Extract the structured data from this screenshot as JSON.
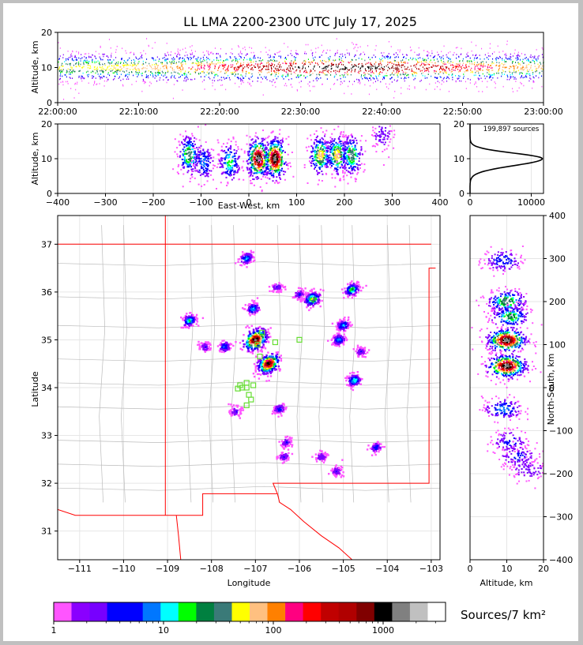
{
  "chart_data": [
    {
      "type": "scatter",
      "panel": "altitude-time",
      "title": "LL LMA 2200-2300 UTC July 17, 2025",
      "ylabel": "Altitude, km",
      "ylim": [
        0,
        20
      ],
      "yticks": [
        0,
        10,
        20
      ],
      "xticks": [
        "22:00:00",
        "22:10:00",
        "22:20:00",
        "22:30:00",
        "22:40:00",
        "22:50:00",
        "23:00:00"
      ],
      "xlim_minutes": [
        0,
        60
      ],
      "density_center_km": 10
    },
    {
      "type": "scatter",
      "panel": "east-west-altitude",
      "xlabel": "East-West, km",
      "ylabel": "Altitude, km",
      "xlim": [
        -400,
        400
      ],
      "ylim": [
        0,
        20
      ],
      "xticks": [
        -400,
        -300,
        -200,
        -100,
        0,
        100,
        200,
        300,
        400
      ],
      "yticks": [
        0,
        10,
        20
      ],
      "clusters": [
        {
          "x": -125,
          "z": 11,
          "weight": 0.5
        },
        {
          "x": -95,
          "z": 9,
          "weight": 0.3
        },
        {
          "x": -40,
          "z": 9,
          "weight": 0.4
        },
        {
          "x": 20,
          "z": 10,
          "weight": 1.0
        },
        {
          "x": 55,
          "z": 10,
          "weight": 1.0
        },
        {
          "x": 150,
          "z": 11,
          "weight": 0.6
        },
        {
          "x": 185,
          "z": 11,
          "weight": 0.6
        },
        {
          "x": 215,
          "z": 11,
          "weight": 0.5
        },
        {
          "x": 280,
          "z": 17,
          "weight": 0.15
        }
      ]
    },
    {
      "type": "line",
      "panel": "altitude-histogram",
      "annotation": "199,897 sources",
      "xlim": [
        0,
        12000
      ],
      "ylim": [
        0,
        20
      ],
      "xticks": [
        0,
        10000
      ],
      "yticks": [
        0,
        10,
        20
      ],
      "peak_altitude_km": 10,
      "peak_count": 11800
    },
    {
      "type": "scatter",
      "panel": "plan-view-map",
      "xlabel": "Longitude",
      "ylabel": "Latitude",
      "xlim": [
        -111.5,
        -102.8
      ],
      "ylim": [
        30.4,
        37.6
      ],
      "xticks": [
        -111,
        -110,
        -109,
        -108,
        -107,
        -106,
        -105,
        -104,
        -103
      ],
      "yticks": [
        31,
        32,
        33,
        34,
        35,
        36,
        37
      ],
      "source_clusters": [
        {
          "lon": -107.0,
          "lat": 35.0,
          "weight": 1.0
        },
        {
          "lon": -106.7,
          "lat": 34.5,
          "weight": 0.9
        },
        {
          "lon": -105.7,
          "lat": 35.85,
          "weight": 0.5
        },
        {
          "lon": -104.8,
          "lat": 36.05,
          "weight": 0.4
        },
        {
          "lon": -107.05,
          "lat": 35.65,
          "weight": 0.3
        },
        {
          "lon": -108.5,
          "lat": 35.4,
          "weight": 0.35
        },
        {
          "lon": -105.1,
          "lat": 35.0,
          "weight": 0.3
        },
        {
          "lon": -105.0,
          "lat": 35.3,
          "weight": 0.3
        },
        {
          "lon": -104.75,
          "lat": 34.15,
          "weight": 0.35
        },
        {
          "lon": -107.2,
          "lat": 36.7,
          "weight": 0.3
        },
        {
          "lon": -106.5,
          "lat": 36.1,
          "weight": 0.15
        },
        {
          "lon": -107.7,
          "lat": 34.85,
          "weight": 0.25
        },
        {
          "lon": -106.45,
          "lat": 33.55,
          "weight": 0.2
        },
        {
          "lon": -107.45,
          "lat": 33.5,
          "weight": 0.15
        },
        {
          "lon": -106.3,
          "lat": 32.85,
          "weight": 0.15
        },
        {
          "lon": -106.35,
          "lat": 32.55,
          "weight": 0.15
        },
        {
          "lon": -105.5,
          "lat": 32.55,
          "weight": 0.15
        },
        {
          "lon": -105.15,
          "lat": 32.25,
          "weight": 0.15
        },
        {
          "lon": -104.25,
          "lat": 32.75,
          "weight": 0.2
        },
        {
          "lon": -104.6,
          "lat": 34.75,
          "weight": 0.15
        },
        {
          "lon": -108.15,
          "lat": 34.85,
          "weight": 0.15
        },
        {
          "lon": -106.0,
          "lat": 35.95,
          "weight": 0.15
        }
      ],
      "stations": [
        [
          -107.35,
          34.05
        ],
        [
          -107.2,
          34.0
        ],
        [
          -107.05,
          34.05
        ],
        [
          -107.4,
          33.98
        ],
        [
          -107.2,
          34.1
        ],
        [
          -107.15,
          33.85
        ],
        [
          -107.1,
          33.75
        ],
        [
          -107.2,
          33.63
        ],
        [
          -106.9,
          34.65
        ],
        [
          -106.95,
          34.9
        ],
        [
          -106.55,
          34.95
        ],
        [
          -106.0,
          35.0
        ],
        [
          -106.85,
          35.15
        ],
        [
          -107.3,
          34.0
        ]
      ]
    },
    {
      "type": "scatter",
      "panel": "north-south-altitude",
      "xlabel": "Altitude, km",
      "ylabel": "North-South, km",
      "xlim": [
        0,
        20
      ],
      "ylim": [
        -400,
        400
      ],
      "xticks": [
        0,
        10,
        20
      ],
      "yticks": [
        -400,
        -300,
        -200,
        -100,
        0,
        100,
        200,
        300,
        400
      ],
      "clusters": [
        {
          "y": 295,
          "z": 9,
          "weight": 0.25
        },
        {
          "y": 200,
          "z": 10,
          "weight": 0.5
        },
        {
          "y": 165,
          "z": 11,
          "weight": 0.45
        },
        {
          "y": 110,
          "z": 10,
          "weight": 1.0
        },
        {
          "y": 50,
          "z": 10,
          "weight": 1.0
        },
        {
          "y": -50,
          "z": 9,
          "weight": 0.3
        },
        {
          "y": -125,
          "z": 11,
          "weight": 0.2
        },
        {
          "y": -160,
          "z": 13,
          "weight": 0.2
        },
        {
          "y": -190,
          "z": 16,
          "weight": 0.15
        }
      ]
    }
  ],
  "colorbar": {
    "label": "Sources/7 km²",
    "ticks": [
      "1",
      "10",
      "100",
      "1000"
    ],
    "colors": [
      "#ff55ff",
      "#8a00ff",
      "#7700ff",
      "#0000ff",
      "#0000ff",
      "#0077ff",
      "#00ffff",
      "#00ff00",
      "#008040",
      "#3a7a78",
      "#ffff00",
      "#ffc080",
      "#ff8000",
      "#ff0080",
      "#ff0000",
      "#c00000",
      "#b00000",
      "#800000",
      "#000000",
      "#808080",
      "#c0c0c0",
      "#ffffff"
    ]
  }
}
